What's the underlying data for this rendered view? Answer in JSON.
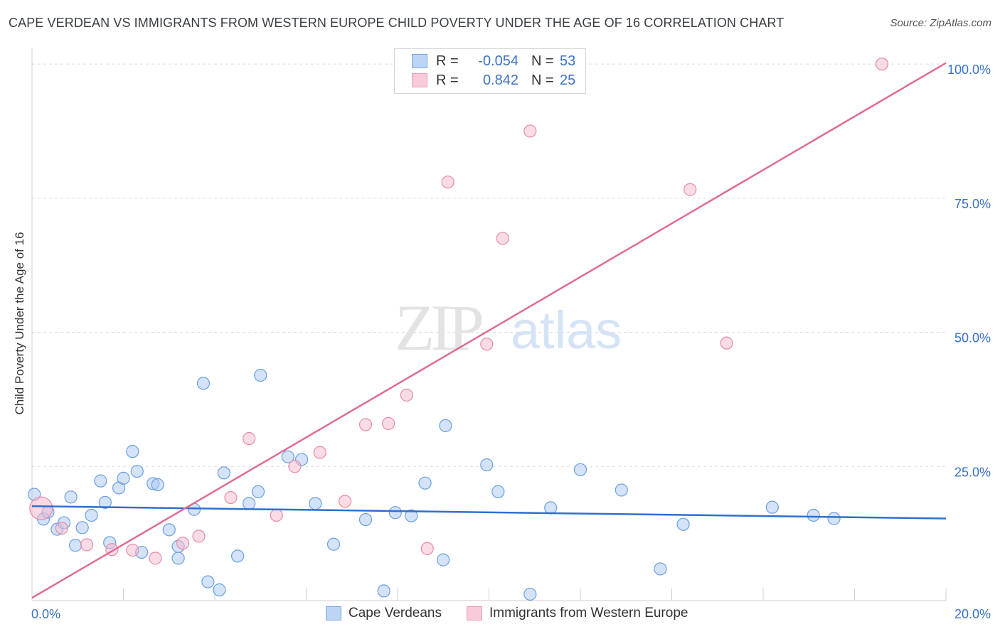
{
  "title": "CAPE VERDEAN VS IMMIGRANTS FROM WESTERN EUROPE CHILD POVERTY UNDER THE AGE OF 16 CORRELATION CHART",
  "source": "Source: ZipAtlas.com",
  "watermark": {
    "zip": "ZIP",
    "atlas": "atlas"
  },
  "legend": {
    "rows": [
      {
        "r_label": "R =",
        "r_value": "-0.054",
        "n_label": "N =",
        "n_value": "53"
      },
      {
        "r_label": "R =",
        "r_value": "0.842",
        "n_label": "N =",
        "n_value": "25"
      }
    ]
  },
  "bottom_legend": [
    "Cape Verdeans",
    "Immigrants from Western Europe"
  ],
  "colors": {
    "blue_fill": "#a9c8f2",
    "blue_stroke": "#6a9fe0",
    "blue_line": "#2f6fd0",
    "pink_fill": "#f6b9cd",
    "pink_stroke": "#e98aaa",
    "pink_line": "#e06b94",
    "axis_label": "#3a72c4",
    "grid": "#dddddd"
  },
  "chart_data": {
    "type": "scatter",
    "title": "CAPE VERDEAN VS IMMIGRANTS FROM WESTERN EUROPE CHILD POVERTY UNDER THE AGE OF 16 CORRELATION CHART",
    "xlabel": "",
    "ylabel": "Child Poverty Under the Age of 16",
    "xlim": [
      0,
      20
    ],
    "ylim": [
      0,
      102
    ],
    "x_tick_labels": [
      {
        "value": 0,
        "label": "0.0%"
      },
      {
        "value": 20,
        "label": "20.0%"
      }
    ],
    "y_tick_labels": [
      {
        "value": 25,
        "label": "25.0%"
      },
      {
        "value": 50,
        "label": "50.0%"
      },
      {
        "value": 75,
        "label": "75.0%"
      },
      {
        "value": 100,
        "label": "100.0%"
      }
    ],
    "series": [
      {
        "name": "Cape Verdeans",
        "color": "blue",
        "r": -0.054,
        "n": 53,
        "trend": {
          "x": [
            0,
            20
          ],
          "y": [
            17.6,
            15.3
          ]
        },
        "points": [
          [
            0.05,
            19.8
          ],
          [
            0.25,
            15.2
          ],
          [
            0.35,
            16.5
          ],
          [
            0.55,
            13.3
          ],
          [
            0.7,
            14.5
          ],
          [
            0.85,
            19.3
          ],
          [
            0.95,
            10.3
          ],
          [
            1.1,
            13.6
          ],
          [
            1.3,
            15.9
          ],
          [
            1.5,
            22.3
          ],
          [
            1.6,
            18.3
          ],
          [
            1.7,
            10.8
          ],
          [
            1.9,
            21.0
          ],
          [
            2.0,
            22.8
          ],
          [
            2.2,
            27.8
          ],
          [
            2.3,
            24.1
          ],
          [
            2.4,
            9.0
          ],
          [
            2.65,
            21.8
          ],
          [
            2.75,
            21.6
          ],
          [
            3.0,
            13.2
          ],
          [
            3.2,
            10.1
          ],
          [
            3.2,
            7.9
          ],
          [
            3.55,
            17.0
          ],
          [
            3.75,
            40.5
          ],
          [
            3.85,
            3.5
          ],
          [
            4.1,
            2.0
          ],
          [
            4.2,
            23.8
          ],
          [
            4.5,
            8.3
          ],
          [
            4.75,
            18.1
          ],
          [
            4.95,
            20.3
          ],
          [
            5.0,
            42.0
          ],
          [
            5.6,
            26.8
          ],
          [
            5.9,
            26.3
          ],
          [
            6.2,
            18.1
          ],
          [
            6.6,
            10.5
          ],
          [
            7.3,
            15.1
          ],
          [
            7.7,
            1.8
          ],
          [
            7.95,
            16.4
          ],
          [
            8.3,
            15.8
          ],
          [
            8.6,
            21.9
          ],
          [
            9.0,
            7.6
          ],
          [
            9.05,
            32.6
          ],
          [
            9.95,
            25.3
          ],
          [
            10.2,
            20.3
          ],
          [
            10.9,
            1.2
          ],
          [
            11.35,
            17.3
          ],
          [
            12.0,
            24.4
          ],
          [
            12.9,
            20.6
          ],
          [
            13.75,
            5.9
          ],
          [
            14.25,
            14.2
          ],
          [
            16.2,
            17.4
          ],
          [
            17.1,
            15.9
          ],
          [
            17.55,
            15.3
          ]
        ]
      },
      {
        "name": "Immigrants from Western Europe",
        "color": "pink",
        "r": 0.842,
        "n": 25,
        "trend": {
          "x": [
            0,
            20
          ],
          "y": [
            0.5,
            100.2
          ]
        },
        "points": [
          [
            0.2,
            17.2
          ],
          [
            0.65,
            13.5
          ],
          [
            1.2,
            10.4
          ],
          [
            1.75,
            9.5
          ],
          [
            2.2,
            9.4
          ],
          [
            2.7,
            7.9
          ],
          [
            3.3,
            10.7
          ],
          [
            3.65,
            12.0
          ],
          [
            4.35,
            19.2
          ],
          [
            4.75,
            30.2
          ],
          [
            5.35,
            15.9
          ],
          [
            5.75,
            25.0
          ],
          [
            6.3,
            27.6
          ],
          [
            6.85,
            18.5
          ],
          [
            7.3,
            32.8
          ],
          [
            7.8,
            33.0
          ],
          [
            8.2,
            38.3
          ],
          [
            8.65,
            9.7
          ],
          [
            9.1,
            78.0
          ],
          [
            9.95,
            47.8
          ],
          [
            10.3,
            67.5
          ],
          [
            10.9,
            87.5
          ],
          [
            14.4,
            76.6
          ],
          [
            15.2,
            48.0
          ],
          [
            18.6,
            100.0
          ]
        ]
      }
    ]
  }
}
